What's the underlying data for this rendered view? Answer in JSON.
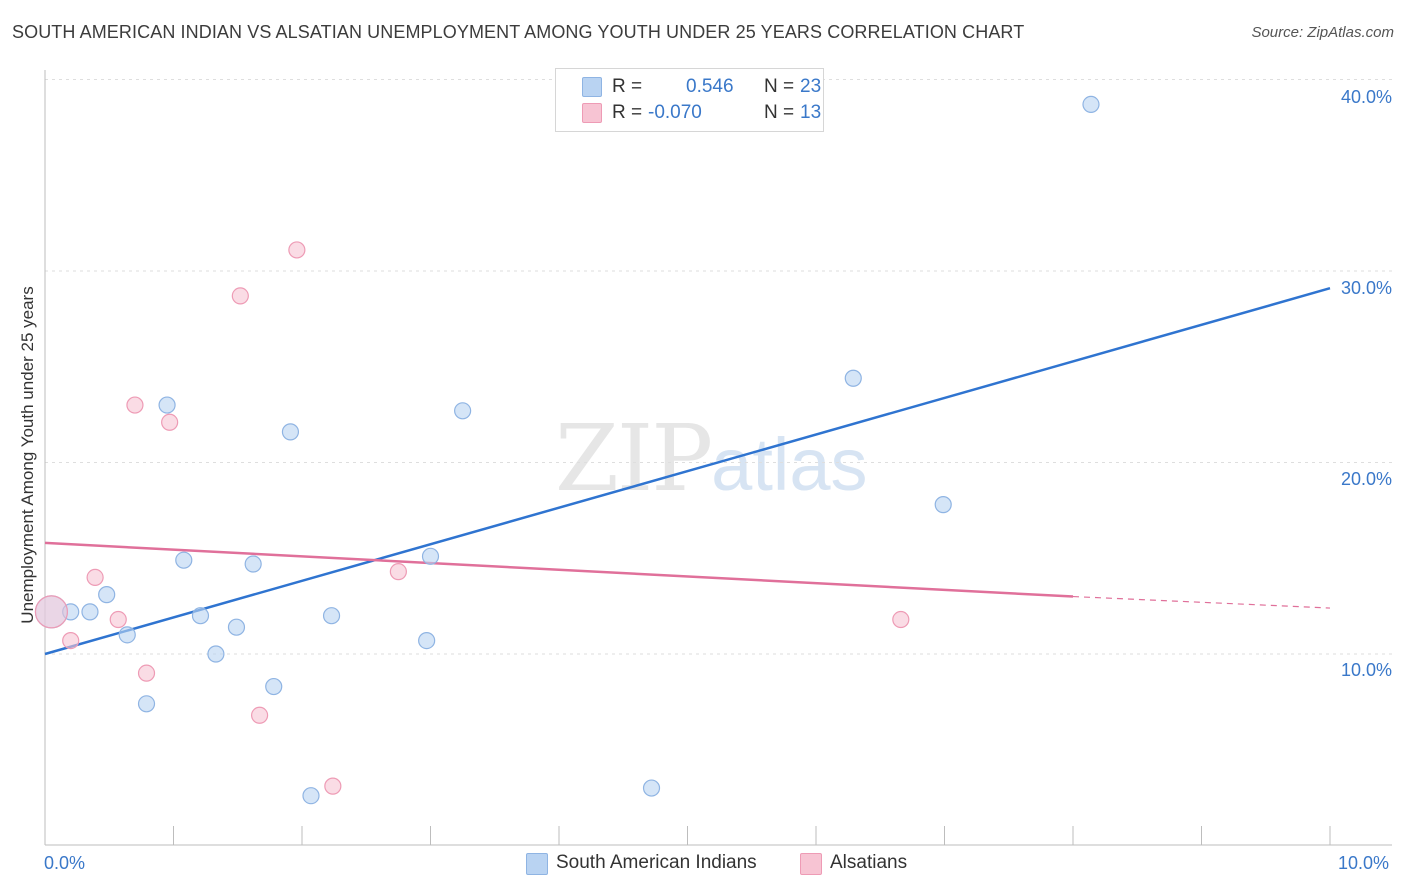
{
  "title": "SOUTH AMERICAN INDIAN VS ALSATIAN UNEMPLOYMENT AMONG YOUTH UNDER 25 YEARS CORRELATION CHART",
  "source": "Source: ZipAtlas.com",
  "watermark": {
    "zip": "ZIP",
    "atlas": "atlas"
  },
  "legend": {
    "r_label": "R =",
    "n_label": "N =",
    "rows": [
      {
        "r": "0.546",
        "n": "23"
      },
      {
        "r": "-0.070",
        "n": "13"
      }
    ]
  },
  "colors": {
    "blue_fill": "#b9d3f2",
    "blue_stroke": "#8fb4e3",
    "blue_line": "#2f74d0",
    "pink_fill": "#f7c4d3",
    "pink_stroke": "#ee9bb5",
    "pink_line": "#e0709a",
    "tick_text": "#3a78c9"
  },
  "chart_data": {
    "type": "scatter",
    "title": "SOUTH AMERICAN INDIAN VS ALSATIAN UNEMPLOYMENT AMONG YOUTH UNDER 25 YEARS CORRELATION CHART",
    "xlabel": "",
    "ylabel": "Unemployment Among Youth under 25 years",
    "xlim": [
      0,
      10
    ],
    "ylim": [
      0,
      41
    ],
    "x_tick_labels": [
      "0.0%",
      "10.0%"
    ],
    "y_ticks": [
      10,
      20,
      30,
      40
    ],
    "y_tick_labels": [
      "10.0%",
      "20.0%",
      "30.0%",
      "40.0%"
    ],
    "series": [
      {
        "name": "South American Indians",
        "r": 0.546,
        "n": 23,
        "points": [
          {
            "x": 0.05,
            "y": 12.2,
            "big": true
          },
          {
            "x": 0.2,
            "y": 12.2
          },
          {
            "x": 0.35,
            "y": 12.2
          },
          {
            "x": 0.48,
            "y": 13.1
          },
          {
            "x": 0.64,
            "y": 11.0
          },
          {
            "x": 0.79,
            "y": 7.4
          },
          {
            "x": 0.95,
            "y": 23.0
          },
          {
            "x": 1.08,
            "y": 14.9
          },
          {
            "x": 1.21,
            "y": 12.0
          },
          {
            "x": 1.33,
            "y": 10.0
          },
          {
            "x": 1.49,
            "y": 11.4
          },
          {
            "x": 1.62,
            "y": 14.7
          },
          {
            "x": 1.78,
            "y": 8.3
          },
          {
            "x": 1.91,
            "y": 21.6
          },
          {
            "x": 2.07,
            "y": 2.6
          },
          {
            "x": 2.23,
            "y": 12.0
          },
          {
            "x": 2.97,
            "y": 10.7
          },
          {
            "x": 3.0,
            "y": 15.1
          },
          {
            "x": 3.25,
            "y": 22.7
          },
          {
            "x": 4.72,
            "y": 3.0
          },
          {
            "x": 6.29,
            "y": 24.4
          },
          {
            "x": 6.99,
            "y": 17.8
          },
          {
            "x": 8.14,
            "y": 38.7
          }
        ],
        "trend": {
          "x": [
            0,
            10
          ],
          "y": [
            10.0,
            29.1
          ]
        }
      },
      {
        "name": "Alsatians",
        "r": -0.07,
        "n": 13,
        "points": [
          {
            "x": 0.05,
            "y": 12.2,
            "big": true
          },
          {
            "x": 0.2,
            "y": 10.7
          },
          {
            "x": 0.39,
            "y": 14.0
          },
          {
            "x": 0.57,
            "y": 11.8
          },
          {
            "x": 0.7,
            "y": 23.0
          },
          {
            "x": 0.79,
            "y": 9.0
          },
          {
            "x": 0.97,
            "y": 22.1
          },
          {
            "x": 1.52,
            "y": 28.7
          },
          {
            "x": 1.67,
            "y": 6.8
          },
          {
            "x": 1.96,
            "y": 31.1
          },
          {
            "x": 2.24,
            "y": 3.1
          },
          {
            "x": 2.75,
            "y": 14.3
          },
          {
            "x": 6.66,
            "y": 11.8
          }
        ],
        "trend": {
          "x": [
            0,
            8.0
          ],
          "y": [
            15.8,
            13.0
          ]
        },
        "trend_dashed": {
          "x": [
            8.0,
            10
          ],
          "y": [
            13.0,
            12.4
          ]
        }
      }
    ]
  },
  "bottom_legend": [
    {
      "label": "South American Indians"
    },
    {
      "label": "Alsatians"
    }
  ]
}
